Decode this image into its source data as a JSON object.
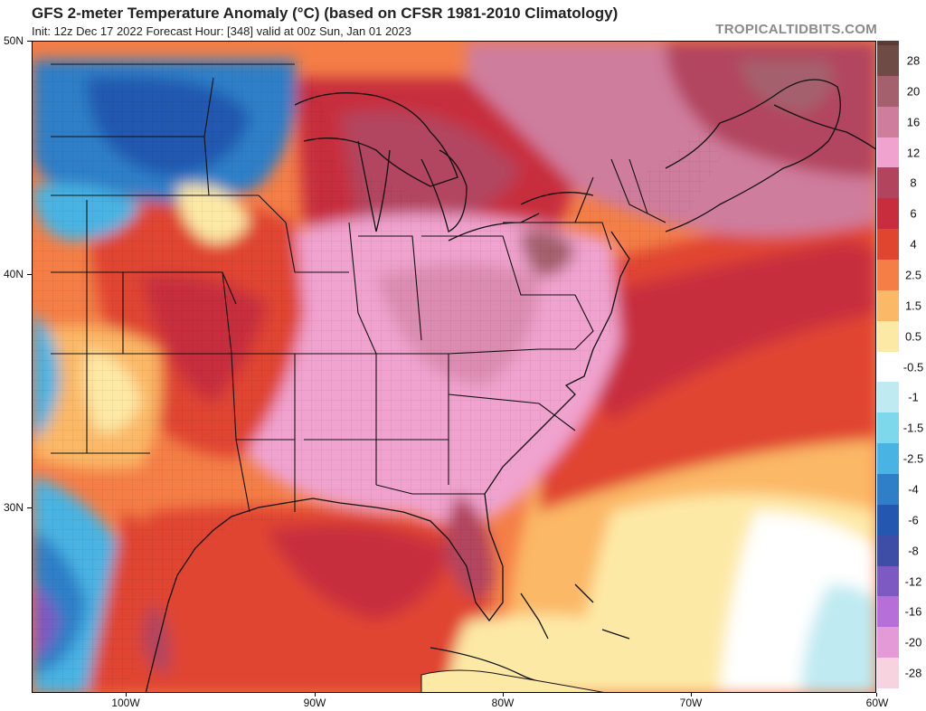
{
  "header": {
    "title": "GFS 2-meter Temperature Anomaly (°C) (based on CFSR 1981-2010 Climatology)",
    "subtitle": "Init: 12z Dec 17 2022   Forecast Hour: [348]   valid at 00z Sun, Jan 01 2023",
    "credit": "TROPICALTIDBITS.COM"
  },
  "axes": {
    "latitude_labels": [
      "50N",
      "40N",
      "30N"
    ],
    "longitude_labels": [
      "100W",
      "90W",
      "80W",
      "70W",
      "60W"
    ]
  },
  "colorbar": {
    "levels": [
      {
        "label": "28",
        "color": "#6e4b44"
      },
      {
        "label": "20",
        "color": "#a5606d"
      },
      {
        "label": "16",
        "color": "#cf7d9d"
      },
      {
        "label": "12",
        "color": "#f0a3cf"
      },
      {
        "label": "8",
        "color": "#b2445e"
      },
      {
        "label": "6",
        "color": "#c72d3c"
      },
      {
        "label": "4",
        "color": "#e04530"
      },
      {
        "label": "2.5",
        "color": "#f47e46"
      },
      {
        "label": "1.5",
        "color": "#fbb866"
      },
      {
        "label": "0.5",
        "color": "#fde9a6"
      },
      {
        "label": "-0.5",
        "color": "#ffffff"
      },
      {
        "label": "-1",
        "color": "#bfeaf2"
      },
      {
        "label": "-1.5",
        "color": "#7ed8ec"
      },
      {
        "label": "-2.5",
        "color": "#49b4e3"
      },
      {
        "label": "-4",
        "color": "#2f7fc8"
      },
      {
        "label": "-6",
        "color": "#2458b0"
      },
      {
        "label": "-8",
        "color": "#3e4ea6"
      },
      {
        "label": "-12",
        "color": "#7d59c2"
      },
      {
        "label": "-16",
        "color": "#b66ed8"
      },
      {
        "label": "-20",
        "color": "#e59ad8"
      },
      {
        "label": "-28",
        "color": "#f7d3e0"
      }
    ]
  },
  "map": {
    "ocean_color": "#f8d8a5",
    "coast_color": "#111111",
    "state_color": "#222222"
  }
}
